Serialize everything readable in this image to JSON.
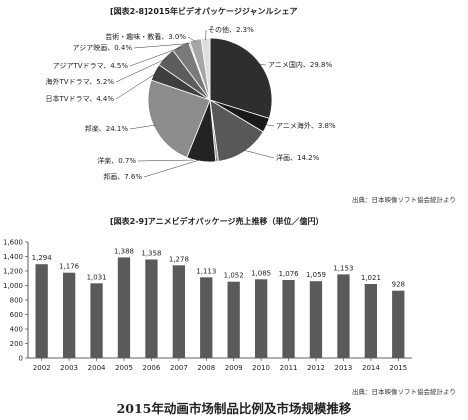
{
  "caption": "2015年动画市场制品比例及市场规模推移",
  "chart_data": [
    {
      "type": "pie",
      "title": "[図表2-8]2015年ビデオパッケージジャンルシェア",
      "source": "出典：日本映像ソフト協会統計より",
      "slices": [
        {
          "label": "アニメ国内",
          "value": 29.8,
          "color": "#2e2e2e"
        },
        {
          "label": "アニメ海外",
          "value": 3.8,
          "color": "#1a1a1a"
        },
        {
          "label": "洋画",
          "value": 14.2,
          "color": "#585858"
        },
        {
          "label": "洋楽",
          "value": 0.7,
          "color": "#9a9a9a"
        },
        {
          "label": "邦画",
          "value": 7.6,
          "color": "#232323"
        },
        {
          "label": "邦楽",
          "value": 24.1,
          "color": "#8c8c8c"
        },
        {
          "label": "日本TVドラマ",
          "value": 4.4,
          "color": "#3e3e3e"
        },
        {
          "label": "海外TVドラマ",
          "value": 5.2,
          "color": "#5c5c5c"
        },
        {
          "label": "アジアTVドラマ",
          "value": 4.5,
          "color": "#7a7a7a"
        },
        {
          "label": "アジア映画",
          "value": 0.4,
          "color": "#bdbdbd"
        },
        {
          "label": "芸術・趣味・教養",
          "value": 3.0,
          "color": "#a6a6a6"
        },
        {
          "label": "その他",
          "value": 2.3,
          "color": "#dedede"
        }
      ]
    },
    {
      "type": "bar",
      "title": "[図表2-9]アニメビデオパッケージ売上推移（単位／億円）",
      "source": "出典：日本映像ソフト協会統計より",
      "categories": [
        "2002",
        "2003",
        "2004",
        "2005",
        "2006",
        "2007",
        "2008",
        "2009",
        "2010",
        "2011",
        "2012",
        "2013",
        "2014",
        "2015"
      ],
      "values": [
        1294,
        1176,
        1031,
        1388,
        1358,
        1278,
        1113,
        1052,
        1085,
        1076,
        1059,
        1153,
        1021,
        928
      ],
      "data_labels": [
        "1,294",
        "1,176",
        "1,031",
        "1,388",
        "1,358",
        "1,278",
        "1,113",
        "1,052",
        "1,085",
        "1,076",
        "1,059",
        "1,153",
        "1,021",
        "928"
      ],
      "ylim": [
        0,
        1600
      ],
      "yticks": [
        0,
        200,
        400,
        600,
        800,
        1000,
        1200,
        1400,
        1600
      ],
      "ytick_labels": [
        "0",
        "200",
        "400",
        "600",
        "800",
        "1,000",
        "1,200",
        "1,400",
        "1,600"
      ],
      "bar_color": "#5a5a5a",
      "grid": false
    }
  ]
}
